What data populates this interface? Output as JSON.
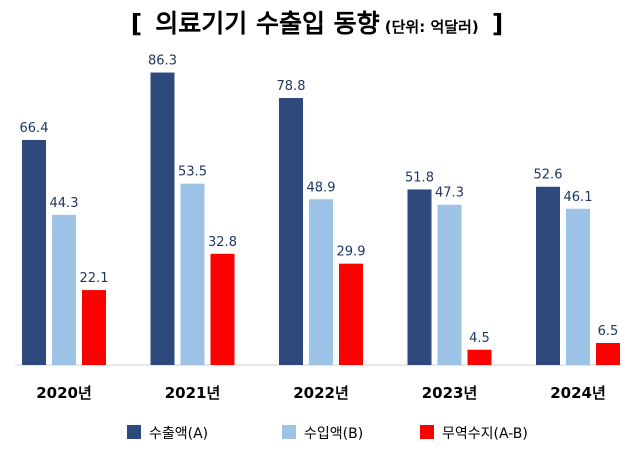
{
  "title": {
    "bracket_open": "[",
    "main": "의료기기 수출입 동향",
    "unit": "(단위: 억달러)",
    "bracket_close": "]"
  },
  "chart_data": {
    "type": "bar",
    "categories": [
      "2020년",
      "2021년",
      "2022년",
      "2023년",
      "2024년"
    ],
    "series": [
      {
        "name": "수출액(A)",
        "color": "#2e4a7d",
        "values": [
          66.4,
          86.3,
          78.8,
          51.8,
          52.6
        ]
      },
      {
        "name": "수입액(B)",
        "color": "#9dc3e6",
        "values": [
          44.3,
          53.5,
          48.9,
          47.3,
          46.1
        ]
      },
      {
        "name": "무역수지(A-B)",
        "color": "#ff0000",
        "values": [
          22.1,
          32.8,
          29.9,
          4.5,
          6.5
        ]
      }
    ],
    "ylim": [
      0,
      90
    ],
    "grid": false,
    "legend": "bottom"
  }
}
